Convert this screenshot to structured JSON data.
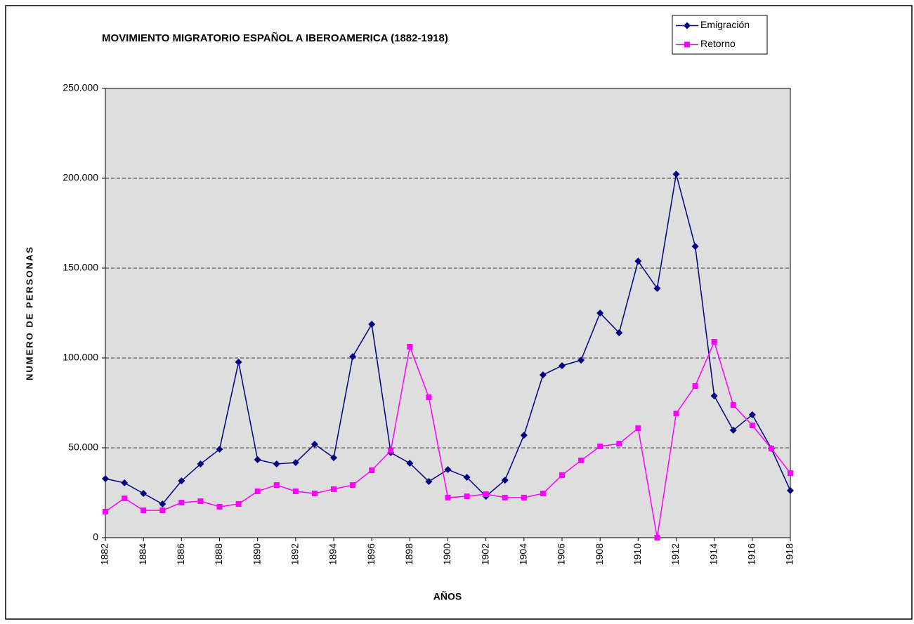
{
  "chart_data": {
    "type": "line",
    "title": "MOVIMIENTO MIGRATORIO ESPAÑOL A IBEROAMERICA (1882-1918)",
    "xlabel": "AÑOS",
    "ylabel": "NUMERO DE PERSONAS",
    "x": [
      1882,
      1883,
      1884,
      1885,
      1886,
      1887,
      1888,
      1889,
      1890,
      1891,
      1892,
      1893,
      1894,
      1895,
      1896,
      1897,
      1898,
      1899,
      1900,
      1901,
      1902,
      1903,
      1904,
      1905,
      1906,
      1907,
      1908,
      1909,
      1910,
      1911,
      1912,
      1913,
      1914,
      1915,
      1916,
      1917,
      1918
    ],
    "xlim": [
      1882,
      1918
    ],
    "xticks": [
      1882,
      1884,
      1886,
      1888,
      1890,
      1892,
      1894,
      1896,
      1898,
      1900,
      1902,
      1904,
      1906,
      1908,
      1910,
      1912,
      1914,
      1916,
      1918
    ],
    "ylim": [
      0,
      250000
    ],
    "yticks": [
      0,
      {
        "value": 50000,
        "label": "50.000"
      },
      {
        "value": 100000,
        "label": "100.000"
      },
      {
        "value": 150000,
        "label": "150.000"
      },
      {
        "value": 200000,
        "label": "200.000"
      },
      {
        "value": 250000,
        "label": "250.000"
      }
    ],
    "grid": true,
    "legend": "top-right",
    "series": [
      {
        "name": "Emigración",
        "color": "#000080",
        "marker": "diamond",
        "values": [
          32800,
          30500,
          24600,
          18750,
          31600,
          41000,
          49200,
          97700,
          43400,
          41000,
          41800,
          52000,
          44500,
          100800,
          118750,
          47300,
          41400,
          31250,
          37900,
          33600,
          23000,
          32000,
          57000,
          90600,
          95700,
          98800,
          125000,
          114000,
          153900,
          138700,
          202300,
          162100,
          78900,
          59800,
          68400,
          49600,
          26200
        ]
      },
      {
        "name": "Retorno",
        "color": "#ff00ff",
        "marker": "square",
        "values": [
          14500,
          21900,
          15200,
          15200,
          19500,
          20300,
          17200,
          18750,
          25800,
          29300,
          25800,
          24600,
          27000,
          29300,
          37500,
          48400,
          106250,
          78100,
          22300,
          23000,
          24200,
          22300,
          22300,
          24600,
          34800,
          43000,
          50800,
          52300,
          60900,
          0,
          69100,
          84400,
          109000,
          73800,
          62500,
          49600,
          35900
        ]
      }
    ]
  }
}
